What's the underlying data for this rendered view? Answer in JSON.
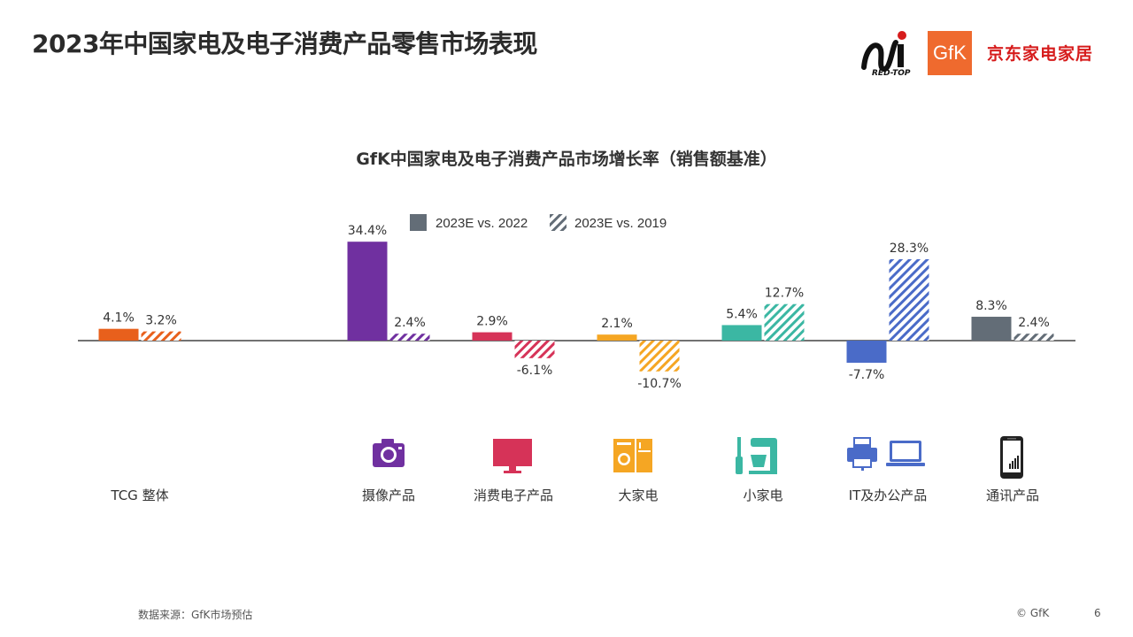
{
  "slide": {
    "title": "2023年中国家电及电子消费产品零售市场表现",
    "page_number": "6",
    "source": "数据来源：GfK市场预估",
    "copyright": "© GfK"
  },
  "logos": {
    "redtop": "RED-TOP",
    "gfk": "GfK",
    "jd": "京东家电家居"
  },
  "colors": {
    "TCG 整体": "#e8601c",
    "摄像产品": "#7030a0",
    "消费电子产品": "#d63358",
    "大家电": "#f5a623",
    "小家电": "#3bb7a3",
    "IT及办公产品": "#4a6bc8",
    "通讯产品": "#636d77",
    "legend_solid": "#636d77",
    "legend_hatch": "#636d77"
  },
  "chart_data": {
    "type": "bar",
    "title": "GfK中国家电及电子消费产品市场增长率（销售额基准）",
    "categories": [
      "TCG 整体",
      "摄像产品",
      "消费电子产品",
      "大家电",
      "小家电",
      "IT及办公产品",
      "通讯产品"
    ],
    "series": [
      {
        "name": "2023E vs. 2022",
        "style": "solid",
        "values": [
          4.1,
          34.4,
          2.9,
          2.1,
          5.4,
          -7.7,
          8.3
        ],
        "labels": [
          "4.1%",
          "34.4%",
          "2.9%",
          "2.1%",
          "5.4%",
          "-7.7%",
          "8.3%"
        ]
      },
      {
        "name": "2023E vs. 2019",
        "style": "hatched",
        "values": [
          3.2,
          2.4,
          -6.1,
          -10.7,
          12.7,
          28.3,
          2.4
        ],
        "labels": [
          "3.2%",
          "2.4%",
          "-6.1%",
          "-10.7%",
          "12.7%",
          "28.3%",
          "2.4%"
        ]
      }
    ],
    "legend_position": "top",
    "grid": false,
    "category_icons": [
      "",
      "camera-icon",
      "tv-icon",
      "appliance-icon",
      "small-appliance-icon",
      "printer-laptop-icon",
      "phone-icon"
    ]
  }
}
